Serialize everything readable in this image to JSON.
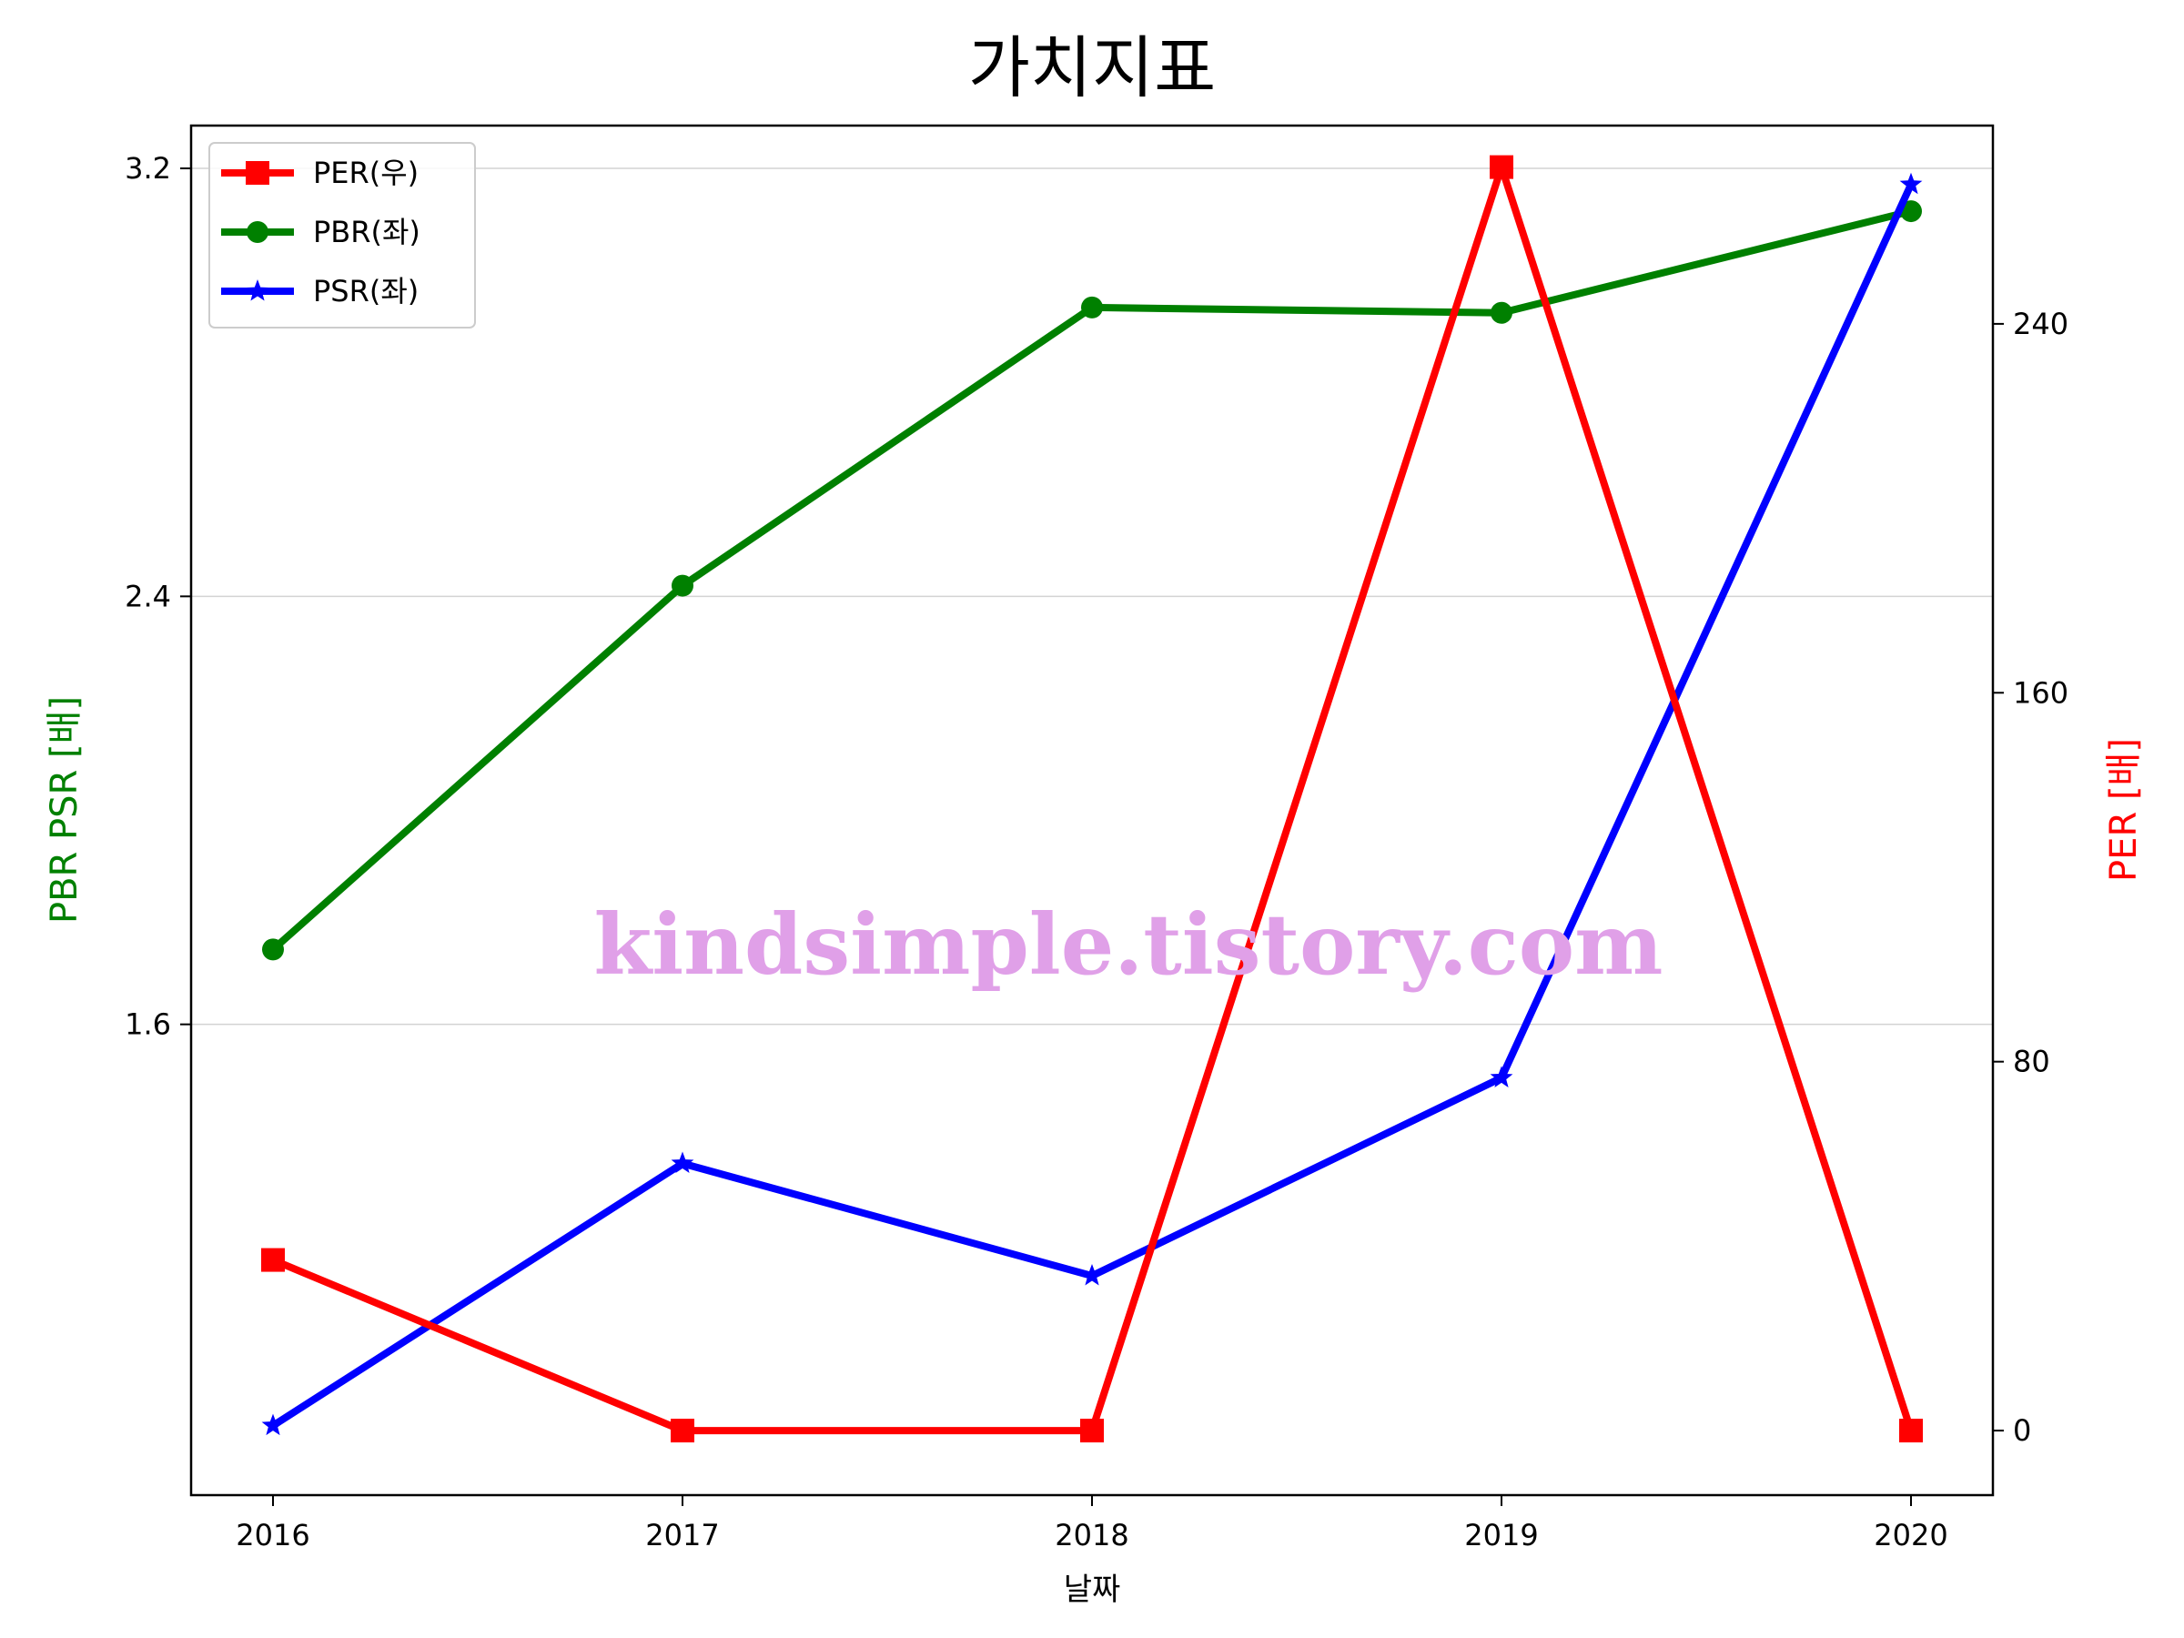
{
  "chart_data": {
    "type": "line",
    "title": "가치지표",
    "xlabel": "날짜",
    "ylabel_left": "PBR PSR [배]",
    "ylabel_right": "PER [배]",
    "categories": [
      "2016",
      "2017",
      "2018",
      "2019",
      "2020"
    ],
    "y_left": {
      "ticks": [
        "1.6",
        "2.4",
        "3.2"
      ],
      "tick_values": [
        1.6,
        2.4,
        3.2
      ],
      "ylim": [
        0.72,
        3.28
      ]
    },
    "y_right": {
      "ticks": [
        "0",
        "80",
        "160",
        "240"
      ],
      "tick_values": [
        0,
        80,
        160,
        240
      ],
      "ylim": [
        -14,
        283
      ]
    },
    "grid": "horizontal (left axis)",
    "legend_position": "upper-left",
    "series": [
      {
        "name": "PER(우)",
        "axis": "right",
        "color": "#ff0000",
        "marker": "square",
        "values": [
          37,
          0,
          0,
          274,
          0
        ]
      },
      {
        "name": "PBR(좌)",
        "axis": "left",
        "color": "#008000",
        "marker": "circle",
        "values": [
          1.74,
          2.42,
          2.94,
          2.93,
          3.12
        ]
      },
      {
        "name": "PSR(좌)",
        "axis": "left",
        "color": "#0000ff",
        "marker": "star",
        "values": [
          0.85,
          1.34,
          1.13,
          1.5,
          3.17
        ]
      }
    ],
    "watermark": {
      "text": "kindsimple.tistory.com",
      "color": "#e0a0e8"
    }
  }
}
